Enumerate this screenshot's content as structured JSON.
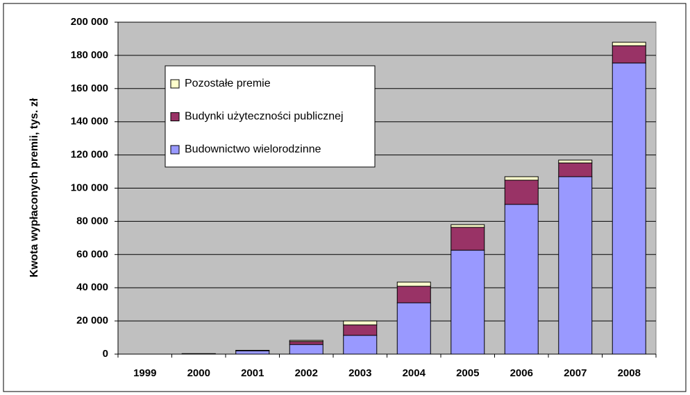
{
  "chart_data": {
    "type": "stacked-bar",
    "y_label": "Kwota wypłaconych premii, tys. zł",
    "categories": [
      "1999",
      "2000",
      "2001",
      "2002",
      "2003",
      "2004",
      "2005",
      "2006",
      "2007",
      "2008"
    ],
    "series": [
      {
        "name": "Budownictwo wielorodzinne",
        "color": "#9999ff",
        "values": [
          0,
          200,
          2000,
          5800,
          11300,
          30900,
          62600,
          90200,
          106900,
          175400
        ]
      },
      {
        "name": "Budynki użyteczności publicznej",
        "color": "#993366",
        "values": [
          0,
          0,
          200,
          1800,
          6300,
          10000,
          13800,
          14600,
          8300,
          10400
        ]
      },
      {
        "name": "Pozostałe premie",
        "color": "#ffffcc",
        "values": [
          0,
          100,
          100,
          700,
          2400,
          2500,
          1600,
          2100,
          1700,
          2100
        ]
      }
    ],
    "ylim": [
      0,
      200000
    ],
    "yticks": [
      {
        "value": 0,
        "label": "0"
      },
      {
        "value": 20000,
        "label": "20 000"
      },
      {
        "value": 40000,
        "label": "40 000"
      },
      {
        "value": 60000,
        "label": "60 000"
      },
      {
        "value": 80000,
        "label": "80 000"
      },
      {
        "value": 100000,
        "label": "100 000"
      },
      {
        "value": 120000,
        "label": "120 000"
      },
      {
        "value": 140000,
        "label": "140 000"
      },
      {
        "value": 160000,
        "label": "160 000"
      },
      {
        "value": 180000,
        "label": "180 000"
      },
      {
        "value": 200000,
        "label": "200 000"
      }
    ],
    "grid": true
  }
}
